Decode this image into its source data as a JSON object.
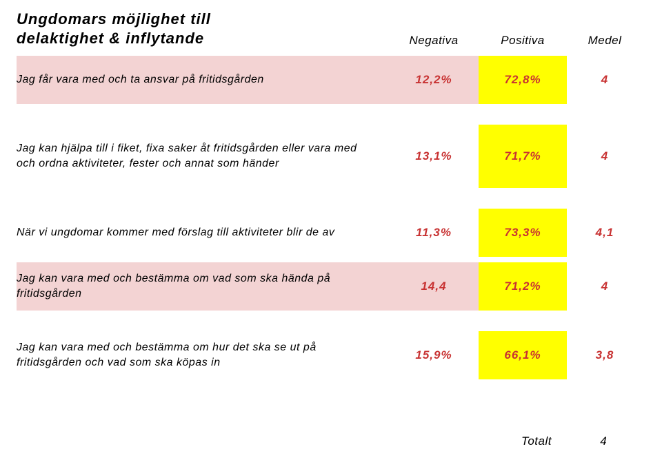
{
  "title_line1": "Ungdomars möjlighet till",
  "title_line2": "delaktighet & inflytande",
  "headers": {
    "negativa": "Negativa",
    "positiva": "Positiva",
    "medel": "Medel"
  },
  "rows": [
    {
      "label": "Jag får vara med och ta ansvar på fritidsgården",
      "neg": "12,2%",
      "pos": "72,8%",
      "med": "4",
      "label_bg": "bg-pink",
      "pos_bg": "bg-yellow",
      "value_class": "red-text",
      "height": "med"
    },
    {
      "label": "Jag kan hjälpa till i fiket, fixa saker åt fritidsgården eller vara med och ordna aktiviteter, fester och annat som händer",
      "neg": "13,1%",
      "pos": "71,7%",
      "med": "4",
      "label_bg": "",
      "pos_bg": "bg-yellow",
      "value_class": "red-text",
      "height": "tall"
    },
    {
      "label": "När vi ungdomar kommer med förslag till aktiviteter blir de av",
      "neg": "11,3%",
      "pos": "73,3%",
      "med": "4,1",
      "label_bg": "",
      "pos_bg": "bg-yellow",
      "value_class": "red-text",
      "height": "med"
    },
    {
      "label": "Jag kan vara med och bestämma om vad som ska hända på fritidsgården",
      "neg": "14,4",
      "pos": "71,2%",
      "med": "4",
      "label_bg": "bg-pink",
      "pos_bg": "bg-yellow",
      "value_class": "red-text",
      "height": "med"
    },
    {
      "label": "Jag kan vara med och bestämma om hur det ska se ut på fritidsgården och vad som ska köpas in",
      "neg": "15,9%",
      "pos": "66,1%",
      "med": "3,8",
      "label_bg": "",
      "pos_bg": "bg-yellow",
      "value_class": "red-text",
      "height": "med"
    }
  ],
  "footer": {
    "label": "Totalt",
    "value": "4"
  },
  "colors": {
    "pink": "#f3d3d3",
    "yellow": "#ffff00",
    "red": "#c83232",
    "background": "#ffffff"
  }
}
